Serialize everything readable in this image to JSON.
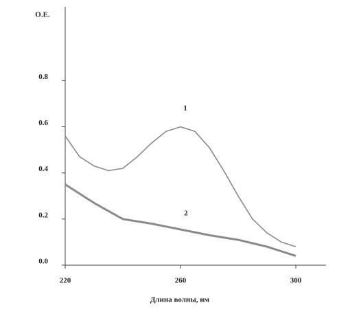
{
  "chart_data": {
    "type": "line",
    "ylabel": "O.E.",
    "xlabel": "Длина волны, нм",
    "xlim": [
      220,
      310
    ],
    "xticks": [
      220,
      260,
      300
    ],
    "ylim": [
      0,
      1.12
    ],
    "yticks": [
      {
        "value": 0,
        "label": "0.0"
      },
      0.2,
      0.4,
      0.6,
      0.8
    ],
    "series": [
      {
        "name": "1",
        "color": "#8a8a8a",
        "x": [
          220,
          225,
          230,
          235,
          240,
          245,
          250,
          255,
          260,
          265,
          270,
          275,
          280,
          285,
          290,
          295,
          300
        ],
        "values": [
          0.56,
          0.47,
          0.43,
          0.41,
          0.42,
          0.47,
          0.53,
          0.58,
          0.6,
          0.58,
          0.51,
          0.41,
          0.3,
          0.2,
          0.14,
          0.1,
          0.08
        ]
      },
      {
        "name": "2",
        "color": "#8a8a8a",
        "x": [
          220,
          230,
          240,
          250,
          260,
          270,
          280,
          290,
          300
        ],
        "values": [
          0.35,
          0.27,
          0.2,
          0.18,
          0.155,
          0.13,
          0.11,
          0.08,
          0.04
        ]
      }
    ]
  }
}
